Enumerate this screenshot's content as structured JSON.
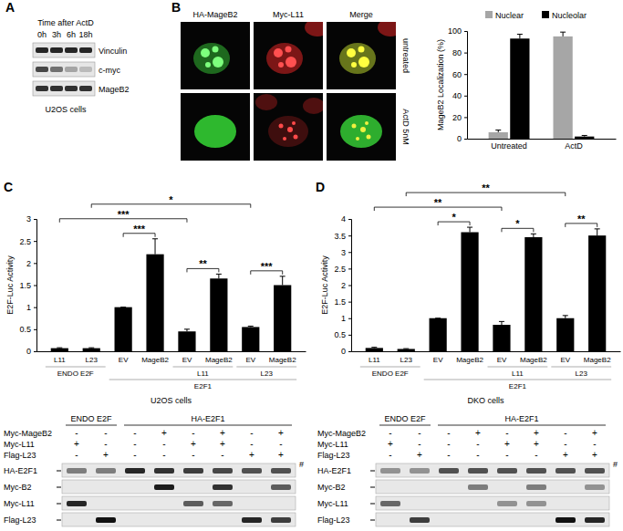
{
  "panel_labels": [
    "A",
    "B",
    "C",
    "D"
  ],
  "panel_a": {
    "header": "Time after ActD",
    "lanes": [
      "0h",
      "3h",
      "6h",
      "18h"
    ],
    "rows": [
      {
        "label": "Vinculin",
        "intensity": [
          0.9,
          0.9,
          0.9,
          0.9
        ]
      },
      {
        "label": "c-myc",
        "intensity": [
          0.75,
          0.55,
          0.3,
          0.2
        ]
      },
      {
        "label": "MageB2",
        "intensity": [
          0.85,
          0.85,
          0.85,
          0.85
        ]
      }
    ],
    "caption": "U2OS cells"
  },
  "panel_b_images": {
    "headers": [
      "HA-MageB2",
      "Myc-L11",
      "Merge"
    ],
    "rows": [
      "untreated",
      "ActD 5nM"
    ]
  },
  "chart_data": [
    {
      "type": "bar",
      "y_label": "MageB2 Localization (%)",
      "categories": [
        "Untreated",
        "ActD"
      ],
      "ylim": [
        0,
        100
      ],
      "yticks": [
        0,
        20,
        40,
        60,
        80,
        100
      ],
      "legend": "top",
      "series": [
        {
          "name": "Nuclear",
          "color": "#a6a6a6",
          "values": [
            6,
            95
          ],
          "errors": [
            2,
            4
          ]
        },
        {
          "name": "Nucleolar",
          "color": "#000000",
          "values": [
            93,
            2
          ],
          "errors": [
            4,
            1
          ]
        }
      ]
    },
    {
      "type": "bar",
      "y_label": "E2F-Luc Activity",
      "categories": [
        "L11",
        "L23",
        "EV",
        "MageB2",
        "EV",
        "MageB2",
        "EV",
        "MageB2"
      ],
      "sub_labels": [
        "ENDO E2F",
        "ENDO E2F",
        null,
        null,
        "L11",
        "L11",
        "L23",
        "L23"
      ],
      "group_labels": [
        null,
        null,
        "E2F1",
        "E2F1",
        "E2F1",
        "E2F1",
        "E2F1",
        "E2F1"
      ],
      "values": [
        0.07,
        0.07,
        1.0,
        2.2,
        0.45,
        1.65,
        0.55,
        1.5
      ],
      "errors": [
        0.01,
        0.01,
        0,
        0.35,
        0.05,
        0.1,
        0.02,
        0.2
      ],
      "color": "#000000",
      "ylim": [
        0,
        3
      ],
      "yticks": [
        0,
        0.5,
        1,
        1.5,
        2,
        2.5,
        3
      ],
      "significance": [
        {
          "pair": [
            2,
            3
          ],
          "label": "***"
        },
        {
          "pair": [
            4,
            5
          ],
          "label": "**"
        },
        {
          "pair": [
            6,
            7
          ],
          "label": "***"
        },
        {
          "pair": [
            0,
            4
          ],
          "label": "***"
        },
        {
          "pair": [
            1,
            6
          ],
          "label": "*"
        }
      ],
      "caption": "U2OS cells"
    },
    {
      "type": "bar",
      "y_label": "E2F-Luc Activity",
      "categories": [
        "L11",
        "L23",
        "EV",
        "MageB2",
        "EV",
        "MageB2",
        "EV",
        "MageB2"
      ],
      "sub_labels": [
        "ENDO E2F",
        "ENDO E2F",
        null,
        null,
        "L11",
        "L11",
        "L23",
        "L23"
      ],
      "group_labels": [
        null,
        null,
        "E2F1",
        "E2F1",
        "E2F1",
        "E2F1",
        "E2F1",
        "E2F1"
      ],
      "values": [
        0.1,
        0.07,
        1.0,
        3.6,
        0.8,
        3.45,
        1.0,
        3.5
      ],
      "errors": [
        0.02,
        0.01,
        0,
        0.15,
        0.1,
        0.1,
        0.08,
        0.2
      ],
      "color": "#000000",
      "ylim": [
        0,
        4
      ],
      "yticks": [
        0,
        0.5,
        1,
        1.5,
        2,
        2.5,
        3,
        3.5,
        4
      ],
      "significance": [
        {
          "pair": [
            2,
            3
          ],
          "label": "*"
        },
        {
          "pair": [
            4,
            5
          ],
          "label": "*"
        },
        {
          "pair": [
            6,
            7
          ],
          "label": "**"
        },
        {
          "pair": [
            0,
            4
          ],
          "label": "**"
        },
        {
          "pair": [
            1,
            6
          ],
          "label": "**"
        }
      ],
      "caption": "DKO cells"
    }
  ],
  "blots": [
    {
      "column_headers": [
        {
          "label": "ENDO E2F",
          "lanes": 2
        },
        {
          "label": "HA-E2F1",
          "lanes": 6
        }
      ],
      "conditions": [
        {
          "label": "Myc-MageB2",
          "signs": [
            "-",
            "-",
            "-",
            "+",
            "-",
            "+",
            "-",
            "+"
          ]
        },
        {
          "label": "Myc-L11",
          "signs": [
            "+",
            "-",
            "-",
            "-",
            "+",
            "+",
            "-",
            "-"
          ]
        },
        {
          "label": "Flag-L23",
          "signs": [
            "-",
            "+",
            "-",
            "-",
            "-",
            "-",
            "+",
            "+"
          ]
        }
      ],
      "bands": [
        {
          "label": "HA-E2F1",
          "intensity": [
            0.5,
            0.5,
            0.9,
            0.85,
            0.8,
            0.75,
            0.7,
            0.7
          ]
        },
        {
          "label": "Myc-B2",
          "intensity": [
            0,
            0,
            0,
            0.95,
            0,
            0.85,
            0,
            0.65
          ]
        },
        {
          "label": "Myc-L11",
          "intensity": [
            0.9,
            0,
            0,
            0,
            0.65,
            0.6,
            0,
            0
          ]
        },
        {
          "label": "Flag-L23",
          "intensity": [
            0,
            1,
            0,
            0,
            0,
            0,
            0.9,
            0.8
          ]
        }
      ],
      "flag": "#"
    },
    {
      "column_headers": [
        {
          "label": "ENDO E2F",
          "lanes": 2
        },
        {
          "label": "HA-E2F1",
          "lanes": 6
        }
      ],
      "conditions": [
        {
          "label": "Myc-MageB2",
          "signs": [
            "-",
            "-",
            "-",
            "+",
            "-",
            "+",
            "-",
            "+"
          ]
        },
        {
          "label": "Myc-L11",
          "signs": [
            "+",
            "-",
            "-",
            "-",
            "+",
            "+",
            "-",
            "-"
          ]
        },
        {
          "label": "Flag-L23",
          "signs": [
            "-",
            "+",
            "-",
            "-",
            "-",
            "-",
            "+",
            "+"
          ]
        }
      ],
      "bands": [
        {
          "label": "HA-E2F1",
          "intensity": [
            0.4,
            0.4,
            0.7,
            0.7,
            0.7,
            0.7,
            0.7,
            0.7
          ]
        },
        {
          "label": "Myc-B2",
          "intensity": [
            0,
            0,
            0,
            0.5,
            0,
            0.5,
            0,
            0.4
          ]
        },
        {
          "label": "Myc-L11",
          "intensity": [
            0.6,
            0,
            0,
            0,
            0.4,
            0.4,
            0,
            0
          ]
        },
        {
          "label": "Flag-L23",
          "intensity": [
            0,
            0.8,
            0,
            0,
            0,
            0,
            1,
            0.9
          ]
        }
      ],
      "flag": "#"
    }
  ]
}
